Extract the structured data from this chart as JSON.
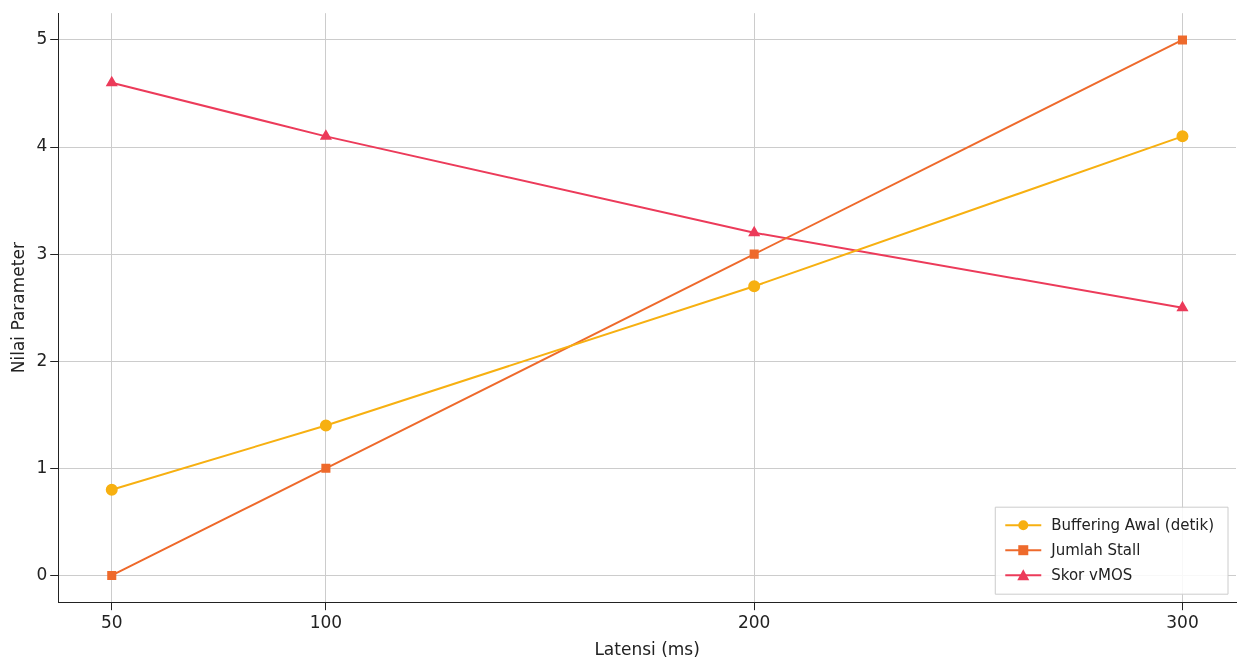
{
  "chart_data": {
    "type": "line",
    "xlabel": "Latensi (ms)",
    "ylabel": "Nilai Parameter",
    "x": [
      50,
      100,
      200,
      300
    ],
    "xlim": [
      37.5,
      312.5
    ],
    "xticks": [
      50,
      100,
      200,
      300
    ],
    "ylim": [
      -0.25,
      5.25
    ],
    "yticks": [
      0,
      1,
      2,
      3,
      4,
      5
    ],
    "grid": true,
    "legend": "bottom right",
    "line_style": "solid",
    "series": [
      {
        "name": "Buffering Awal (detik)",
        "color": "#f7b011",
        "marker": "circle",
        "values": [
          0.8,
          1.4,
          2.7,
          4.1
        ]
      },
      {
        "name": "Jumlah Stall",
        "color": "#ee6a2c",
        "marker": "square",
        "values": [
          0,
          1,
          3,
          5
        ]
      },
      {
        "name": "Skor vMOS",
        "color": "#ec3b5a",
        "marker": "triangle",
        "values": [
          4.6,
          4.1,
          3.2,
          2.5
        ]
      }
    ]
  }
}
